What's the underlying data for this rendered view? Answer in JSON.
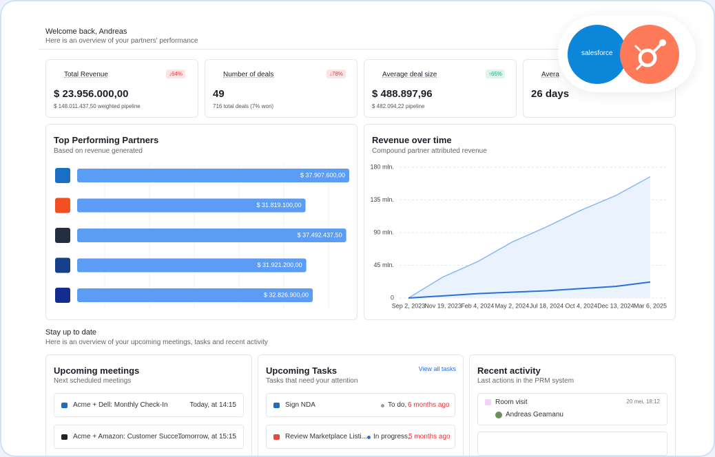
{
  "header": {
    "title": "Welcome back, Andreas",
    "subtitle": "Here is an overview of your partners' performance"
  },
  "integrations": {
    "salesforce": "salesforce"
  },
  "kpis": [
    {
      "label": "Total Revenue",
      "delta": "↓64%",
      "value": "$ 23.956.000,00",
      "note": "$ 148.011.437,50 weighted pipeline"
    },
    {
      "label": "Number of deals",
      "delta": "↓78%",
      "value": "49",
      "note": "716 total deals (7% won)"
    },
    {
      "label": "Average deal size",
      "delta": "↑65%",
      "value": "$ 488.897,96",
      "note": "$ 482.094,22 pipeline"
    },
    {
      "label": "Avera",
      "value": "26 days"
    }
  ],
  "partners": {
    "title": "Top Performing Partners",
    "subtitle": "Based on revenue generated",
    "color": "#5b9cf5",
    "values": [
      37907600,
      31819100,
      37492437.5,
      31921200,
      32826900
    ],
    "value_labels": [
      "$ 37.907.600,00",
      "$ 31.819.100,00",
      "$ 37.492.437,50",
      "$ 31.921.200,00",
      "$ 32.826.900,00"
    ]
  },
  "revenue": {
    "title": "Revenue over time",
    "subtitle": "Compound partner attributed revenue",
    "categories": [
      "Sep 2, 2023",
      "Nov 19, 2023",
      "Feb 4, 2024",
      "May 2, 2024",
      "Jul 18, 2024",
      "Oct 4, 2024",
      "Dec 13, 2024",
      "Mar 6, 2025"
    ],
    "series": [
      {
        "color": "#8ab6f2",
        "values": [
          0,
          29,
          50,
          77,
          98,
          121,
          141,
          167
        ]
      },
      {
        "color": "#2a6fdb",
        "values": [
          0,
          3,
          6,
          8,
          10,
          13,
          16,
          22
        ]
      }
    ],
    "ylim": [
      0,
      180
    ],
    "yticks": [
      0,
      {
        "value": 45,
        "label": "45 mln."
      },
      {
        "value": 90,
        "label": "90 mln."
      },
      {
        "value": 135,
        "label": "135 mln."
      },
      {
        "value": 180,
        "label": "180 mln."
      }
    ],
    "grid": true
  },
  "updates": {
    "title": "Stay up to date",
    "subtitle": "Here is an overview of your upcoming meetings, tasks and recent activity"
  },
  "meetings": {
    "title": "Upcoming meetings",
    "subtitle": "Next scheduled meetings",
    "items": [
      {
        "name": "Acme + Dell: Monthly Check-In",
        "time": "Today, at 14:15"
      },
      {
        "name": "Acme + Amazon: Customer Succe...",
        "time": "Tomorrow, at 15:15"
      }
    ]
  },
  "tasks": {
    "title": "Upcoming Tasks",
    "subtitle": "Tasks that need your attention",
    "link": "View all tasks",
    "items": [
      {
        "name": "Sign NDA",
        "status": "To do,",
        "due": "6 months ago"
      },
      {
        "name": "Review Marketplace Listi...",
        "status": "In progress,",
        "due": "5 months ago"
      }
    ]
  },
  "activity": {
    "title": "Recent activity",
    "subtitle": "Last actions in the PRM system",
    "items": [
      {
        "name": "Room visit",
        "time": "20 mei, 18:12",
        "user": "Andreas Geamanu"
      }
    ]
  }
}
